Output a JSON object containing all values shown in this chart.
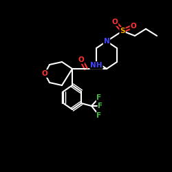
{
  "bg_color": "#000000",
  "bond_color": "#ffffff",
  "atom_colors": {
    "O": "#ff3333",
    "N": "#4444ff",
    "S": "#ffa500",
    "F": "#44bb44",
    "C": "#ffffff",
    "H": "#ffffff"
  },
  "figsize": [
    2.5,
    2.5
  ],
  "dpi": 100
}
